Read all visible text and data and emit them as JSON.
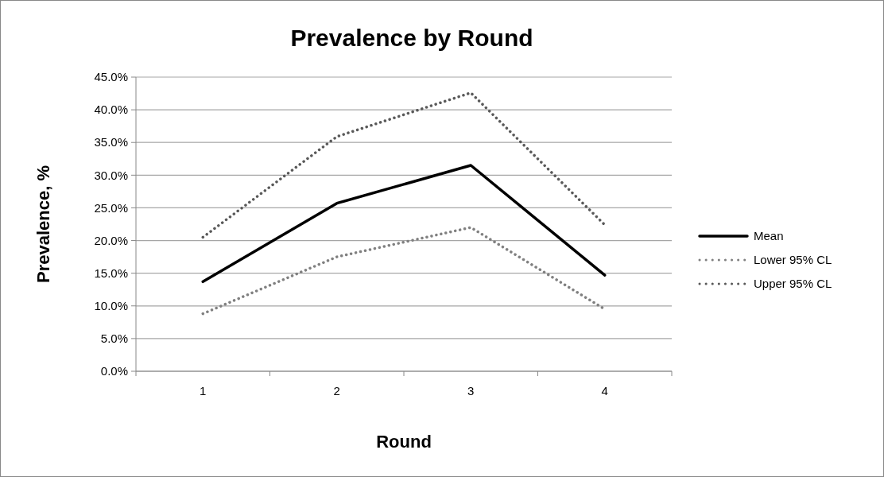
{
  "chart_data": {
    "type": "line",
    "title": "Prevalence by Round",
    "xlabel": "Round",
    "ylabel": "Prevalence, %",
    "categories": [
      "1",
      "2",
      "3",
      "4"
    ],
    "series": [
      {
        "name": "Mean",
        "color": "#000000",
        "values": [
          13.7,
          25.7,
          31.5,
          14.7
        ],
        "line_style": "solid"
      },
      {
        "name": "Lower 95% CL",
        "color": "#808080",
        "values": [
          8.8,
          17.5,
          22.0,
          9.5
        ],
        "line_style": "dotted"
      },
      {
        "name": "Upper 95% CL",
        "color": "#595959",
        "values": [
          20.5,
          35.9,
          42.6,
          22.4
        ],
        "line_style": "dotted"
      }
    ],
    "ylim": [
      0,
      45
    ],
    "yticks": [
      {
        "value": 0,
        "label": "0.0%"
      },
      {
        "value": 5,
        "label": "5.0%"
      },
      {
        "value": 10,
        "label": "10.0%"
      },
      {
        "value": 15,
        "label": "15.0%"
      },
      {
        "value": 20,
        "label": "20.0%"
      },
      {
        "value": 25,
        "label": "25.0%"
      },
      {
        "value": 30,
        "label": "30.0%"
      },
      {
        "value": 35,
        "label": "35.0%"
      },
      {
        "value": 40,
        "label": "40.0%"
      },
      {
        "value": 45,
        "label": "45.0%"
      }
    ],
    "grid": "y",
    "legend": "right",
    "marker": "none"
  }
}
